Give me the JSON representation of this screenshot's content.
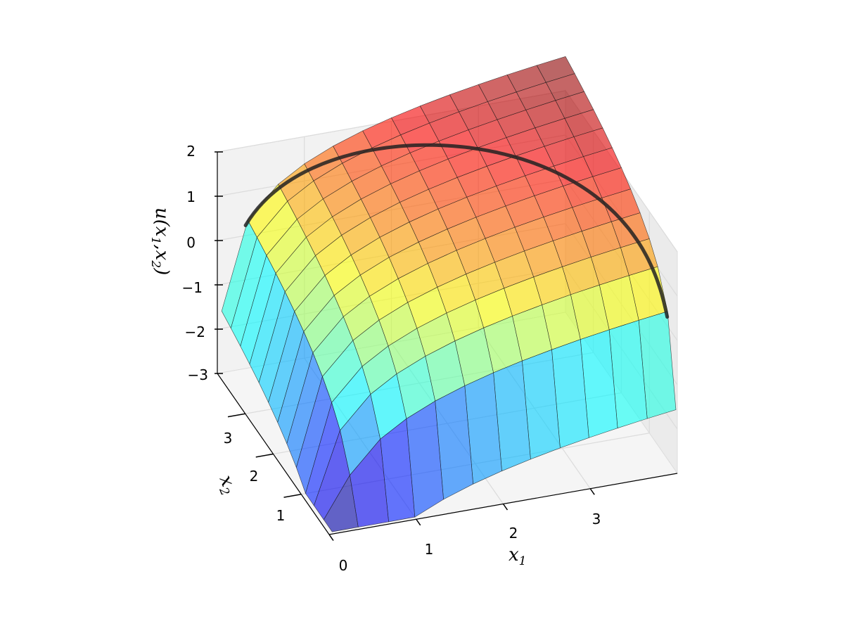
{
  "chart_data": {
    "type": "surface3d",
    "function": "u(x1, x2) = ln(x1) + ln(x2)",
    "xlabel": "x",
    "xlabel_sub": "1",
    "ylabel": "x",
    "ylabel_sub": "2",
    "zlabel": "u(x",
    "zlabel_sub1": "1",
    "zlabel_mid": ",x",
    "zlabel_sub2": "2",
    "zlabel_end": ")",
    "x_ticks": [
      "0",
      "1",
      "2",
      "3"
    ],
    "y_ticks": [
      "1",
      "2",
      "3"
    ],
    "z_ticks": [
      "2",
      "1",
      "0",
      "−1",
      "−2",
      "−3"
    ],
    "xlim": [
      0,
      4
    ],
    "ylim": [
      0,
      4
    ],
    "zlim": [
      -3,
      2
    ],
    "grid": true,
    "colormap": "jet",
    "surface_alpha": 0.6,
    "curve": {
      "description": "budget constraint x1^2 + x2^2 = 16 projected onto the surface",
      "color": "#222222"
    }
  }
}
